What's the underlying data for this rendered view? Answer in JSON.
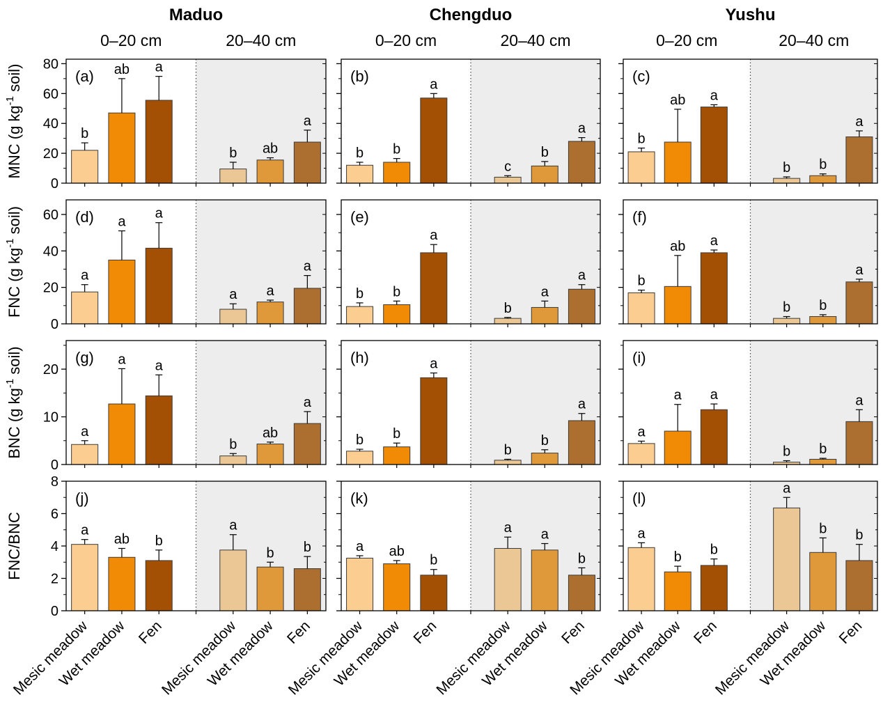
{
  "figure": {
    "sites": [
      "Maduo",
      "Chengduo",
      "Yushu"
    ],
    "depths": [
      "0–20 cm",
      "20–40 cm"
    ],
    "categories": [
      "Mesic meadow",
      "Wet meadow",
      "Fen"
    ],
    "colors": {
      "bars_0_20cm": [
        "#FBCD90",
        "#F18B05",
        "#A35004"
      ],
      "bars_20_40cm": [
        "#EBC795",
        "#E0993A",
        "#AC6F2F"
      ],
      "bar_border": "#3a3a3a",
      "shaded_depth_bg": "#EDEDED",
      "error_bar": "#000000",
      "axis": "#000000"
    }
  },
  "chart_data": {
    "type": "bar",
    "sites": [
      "Maduo",
      "Chengduo",
      "Yushu"
    ],
    "depths": [
      "0–20 cm",
      "20–40 cm"
    ],
    "categories": [
      "Mesic meadow",
      "Wet meadow",
      "Fen"
    ],
    "rows": [
      {
        "measure": "MNC",
        "label_pre": "MNC (g kg",
        "label_sup": "-1",
        "label_post": " soil)",
        "ymax": 83,
        "ticks": [
          0,
          20,
          40,
          60,
          80
        ],
        "minor_step": 10
      },
      {
        "measure": "FNC",
        "label_pre": "FNC (g kg",
        "label_sup": "-1",
        "label_post": " soil)",
        "ymax": 68,
        "ticks": [
          0,
          20,
          40,
          60
        ],
        "minor_step": 10
      },
      {
        "measure": "BNC",
        "label_pre": "BNC (g kg",
        "label_sup": "-1",
        "label_post": " soil)",
        "ymax": 26,
        "ticks": [
          0,
          10,
          20
        ],
        "minor_step": 5
      },
      {
        "measure": "FNC/BNC",
        "label_pre": "FNC/BNC",
        "label_sup": "",
        "label_post": "",
        "ymax": 8,
        "ticks": [
          0,
          2,
          4,
          6,
          8
        ],
        "minor_step": 1
      }
    ],
    "panels": [
      {
        "tag": "(a)",
        "row": 0,
        "col": 0,
        "site": "Maduo",
        "measure": "MNC",
        "groups": [
          {
            "depth": "0–20 cm",
            "values": [
              22,
              47,
              55.5
            ],
            "errors": [
              5,
              23,
              16
            ],
            "letters": [
              "b",
              "ab",
              "a"
            ]
          },
          {
            "depth": "20–40 cm",
            "values": [
              9.5,
              15.5,
              27.5
            ],
            "errors": [
              4.5,
              1.5,
              8
            ],
            "letters": [
              "b",
              "ab",
              "a"
            ]
          }
        ]
      },
      {
        "tag": "(b)",
        "row": 0,
        "col": 1,
        "site": "Chengduo",
        "measure": "MNC",
        "groups": [
          {
            "depth": "0–20 cm",
            "values": [
              12,
              14,
              57
            ],
            "errors": [
              2,
              2.5,
              3
            ],
            "letters": [
              "b",
              "b",
              "a"
            ]
          },
          {
            "depth": "20–40 cm",
            "values": [
              4,
              11.5,
              28
            ],
            "errors": [
              1,
              3,
              2.5
            ],
            "letters": [
              "c",
              "b",
              "a"
            ]
          }
        ]
      },
      {
        "tag": "(c)",
        "row": 0,
        "col": 2,
        "site": "Yushu",
        "measure": "MNC",
        "groups": [
          {
            "depth": "0–20 cm",
            "values": [
              21,
              27.5,
              51
            ],
            "errors": [
              2.5,
              22,
              1.5
            ],
            "letters": [
              "b",
              "ab",
              "a"
            ]
          },
          {
            "depth": "20–40 cm",
            "values": [
              3.2,
              5,
              31
            ],
            "errors": [
              1,
              1.2,
              4
            ],
            "letters": [
              "b",
              "b",
              "a"
            ]
          }
        ]
      },
      {
        "tag": "(d)",
        "row": 1,
        "col": 0,
        "site": "Maduo",
        "measure": "FNC",
        "groups": [
          {
            "depth": "0–20 cm",
            "values": [
              17.5,
              35,
              41.5
            ],
            "errors": [
              4,
              16,
              14
            ],
            "letters": [
              "a",
              "a",
              "a"
            ]
          },
          {
            "depth": "20–40 cm",
            "values": [
              8,
              12,
              19.5
            ],
            "errors": [
              3,
              1,
              7
            ],
            "letters": [
              "a",
              "a",
              "a"
            ]
          }
        ]
      },
      {
        "tag": "(e)",
        "row": 1,
        "col": 1,
        "site": "Chengduo",
        "measure": "FNC",
        "groups": [
          {
            "depth": "0–20 cm",
            "values": [
              9.5,
              10.5,
              39
            ],
            "errors": [
              2,
              2,
              4.5
            ],
            "letters": [
              "b",
              "b",
              "a"
            ]
          },
          {
            "depth": "20–40 cm",
            "values": [
              3,
              9,
              19
            ],
            "errors": [
              0.5,
              3.5,
              2.5
            ],
            "letters": [
              "b",
              "a",
              "a"
            ]
          }
        ]
      },
      {
        "tag": "(f)",
        "row": 1,
        "col": 2,
        "site": "Yushu",
        "measure": "FNC",
        "groups": [
          {
            "depth": "0–20 cm",
            "values": [
              17,
              20.5,
              39
            ],
            "errors": [
              1.5,
              17,
              1.5
            ],
            "letters": [
              "b",
              "ab",
              "a"
            ]
          },
          {
            "depth": "20–40 cm",
            "values": [
              3,
              4,
              23
            ],
            "errors": [
              1,
              1,
              1.5
            ],
            "letters": [
              "b",
              "b",
              "a"
            ]
          }
        ]
      },
      {
        "tag": "(g)",
        "row": 2,
        "col": 0,
        "site": "Maduo",
        "measure": "BNC",
        "groups": [
          {
            "depth": "0–20 cm",
            "values": [
              4.2,
              12.7,
              14.4
            ],
            "errors": [
              0.8,
              7.4,
              4.4
            ],
            "letters": [
              "a",
              "a",
              "a"
            ]
          },
          {
            "depth": "20–40 cm",
            "values": [
              1.8,
              4.3,
              8.6
            ],
            "errors": [
              0.5,
              0.4,
              2.5
            ],
            "letters": [
              "b",
              "ab",
              "a"
            ]
          }
        ]
      },
      {
        "tag": "(h)",
        "row": 2,
        "col": 1,
        "site": "Chengduo",
        "measure": "BNC",
        "groups": [
          {
            "depth": "0–20 cm",
            "values": [
              2.8,
              3.7,
              18.2
            ],
            "errors": [
              0.4,
              0.8,
              1
            ],
            "letters": [
              "b",
              "b",
              "a"
            ]
          },
          {
            "depth": "20–40 cm",
            "values": [
              0.9,
              2.4,
              9.2
            ],
            "errors": [
              0.2,
              0.7,
              1.5
            ],
            "letters": [
              "b",
              "b",
              "a"
            ]
          }
        ]
      },
      {
        "tag": "(i)",
        "row": 2,
        "col": 2,
        "site": "Yushu",
        "measure": "BNC",
        "groups": [
          {
            "depth": "0–20 cm",
            "values": [
              4.4,
              7,
              11.5
            ],
            "errors": [
              0.5,
              5.6,
              1.2
            ],
            "letters": [
              "a",
              "a",
              "a"
            ]
          },
          {
            "depth": "20–40 cm",
            "values": [
              0.5,
              1.1,
              9
            ],
            "errors": [
              0.3,
              0.2,
              2.5
            ],
            "letters": [
              "b",
              "b",
              "a"
            ]
          }
        ]
      },
      {
        "tag": "(j)",
        "row": 3,
        "col": 0,
        "site": "Maduo",
        "measure": "FNC/BNC",
        "groups": [
          {
            "depth": "0–20 cm",
            "values": [
              4.1,
              3.3,
              3.1
            ],
            "errors": [
              0.3,
              0.55,
              0.65
            ],
            "letters": [
              "a",
              "ab",
              "b"
            ]
          },
          {
            "depth": "20–40 cm",
            "values": [
              3.75,
              2.7,
              2.6
            ],
            "errors": [
              0.95,
              0.3,
              0.75
            ],
            "letters": [
              "a",
              "b",
              "b"
            ]
          }
        ]
      },
      {
        "tag": "(k)",
        "row": 3,
        "col": 1,
        "site": "Chengduo",
        "measure": "FNC/BNC",
        "groups": [
          {
            "depth": "0–20 cm",
            "values": [
              3.25,
              2.9,
              2.2
            ],
            "errors": [
              0.15,
              0.2,
              0.35
            ],
            "letters": [
              "a",
              "ab",
              "b"
            ]
          },
          {
            "depth": "20–40 cm",
            "values": [
              3.85,
              3.75,
              2.2
            ],
            "errors": [
              0.7,
              0.4,
              0.45
            ],
            "letters": [
              "a",
              "a",
              "b"
            ]
          }
        ]
      },
      {
        "tag": "(l)",
        "row": 3,
        "col": 2,
        "site": "Yushu",
        "measure": "FNC/BNC",
        "groups": [
          {
            "depth": "0–20 cm",
            "values": [
              3.9,
              2.4,
              2.8
            ],
            "errors": [
              0.3,
              0.35,
              0.4
            ],
            "letters": [
              "a",
              "b",
              "b"
            ]
          },
          {
            "depth": "20–40 cm",
            "values": [
              6.35,
              3.6,
              3.1
            ],
            "errors": [
              0.65,
              0.9,
              1
            ],
            "letters": [
              "a",
              "b",
              "b"
            ]
          }
        ]
      }
    ]
  }
}
